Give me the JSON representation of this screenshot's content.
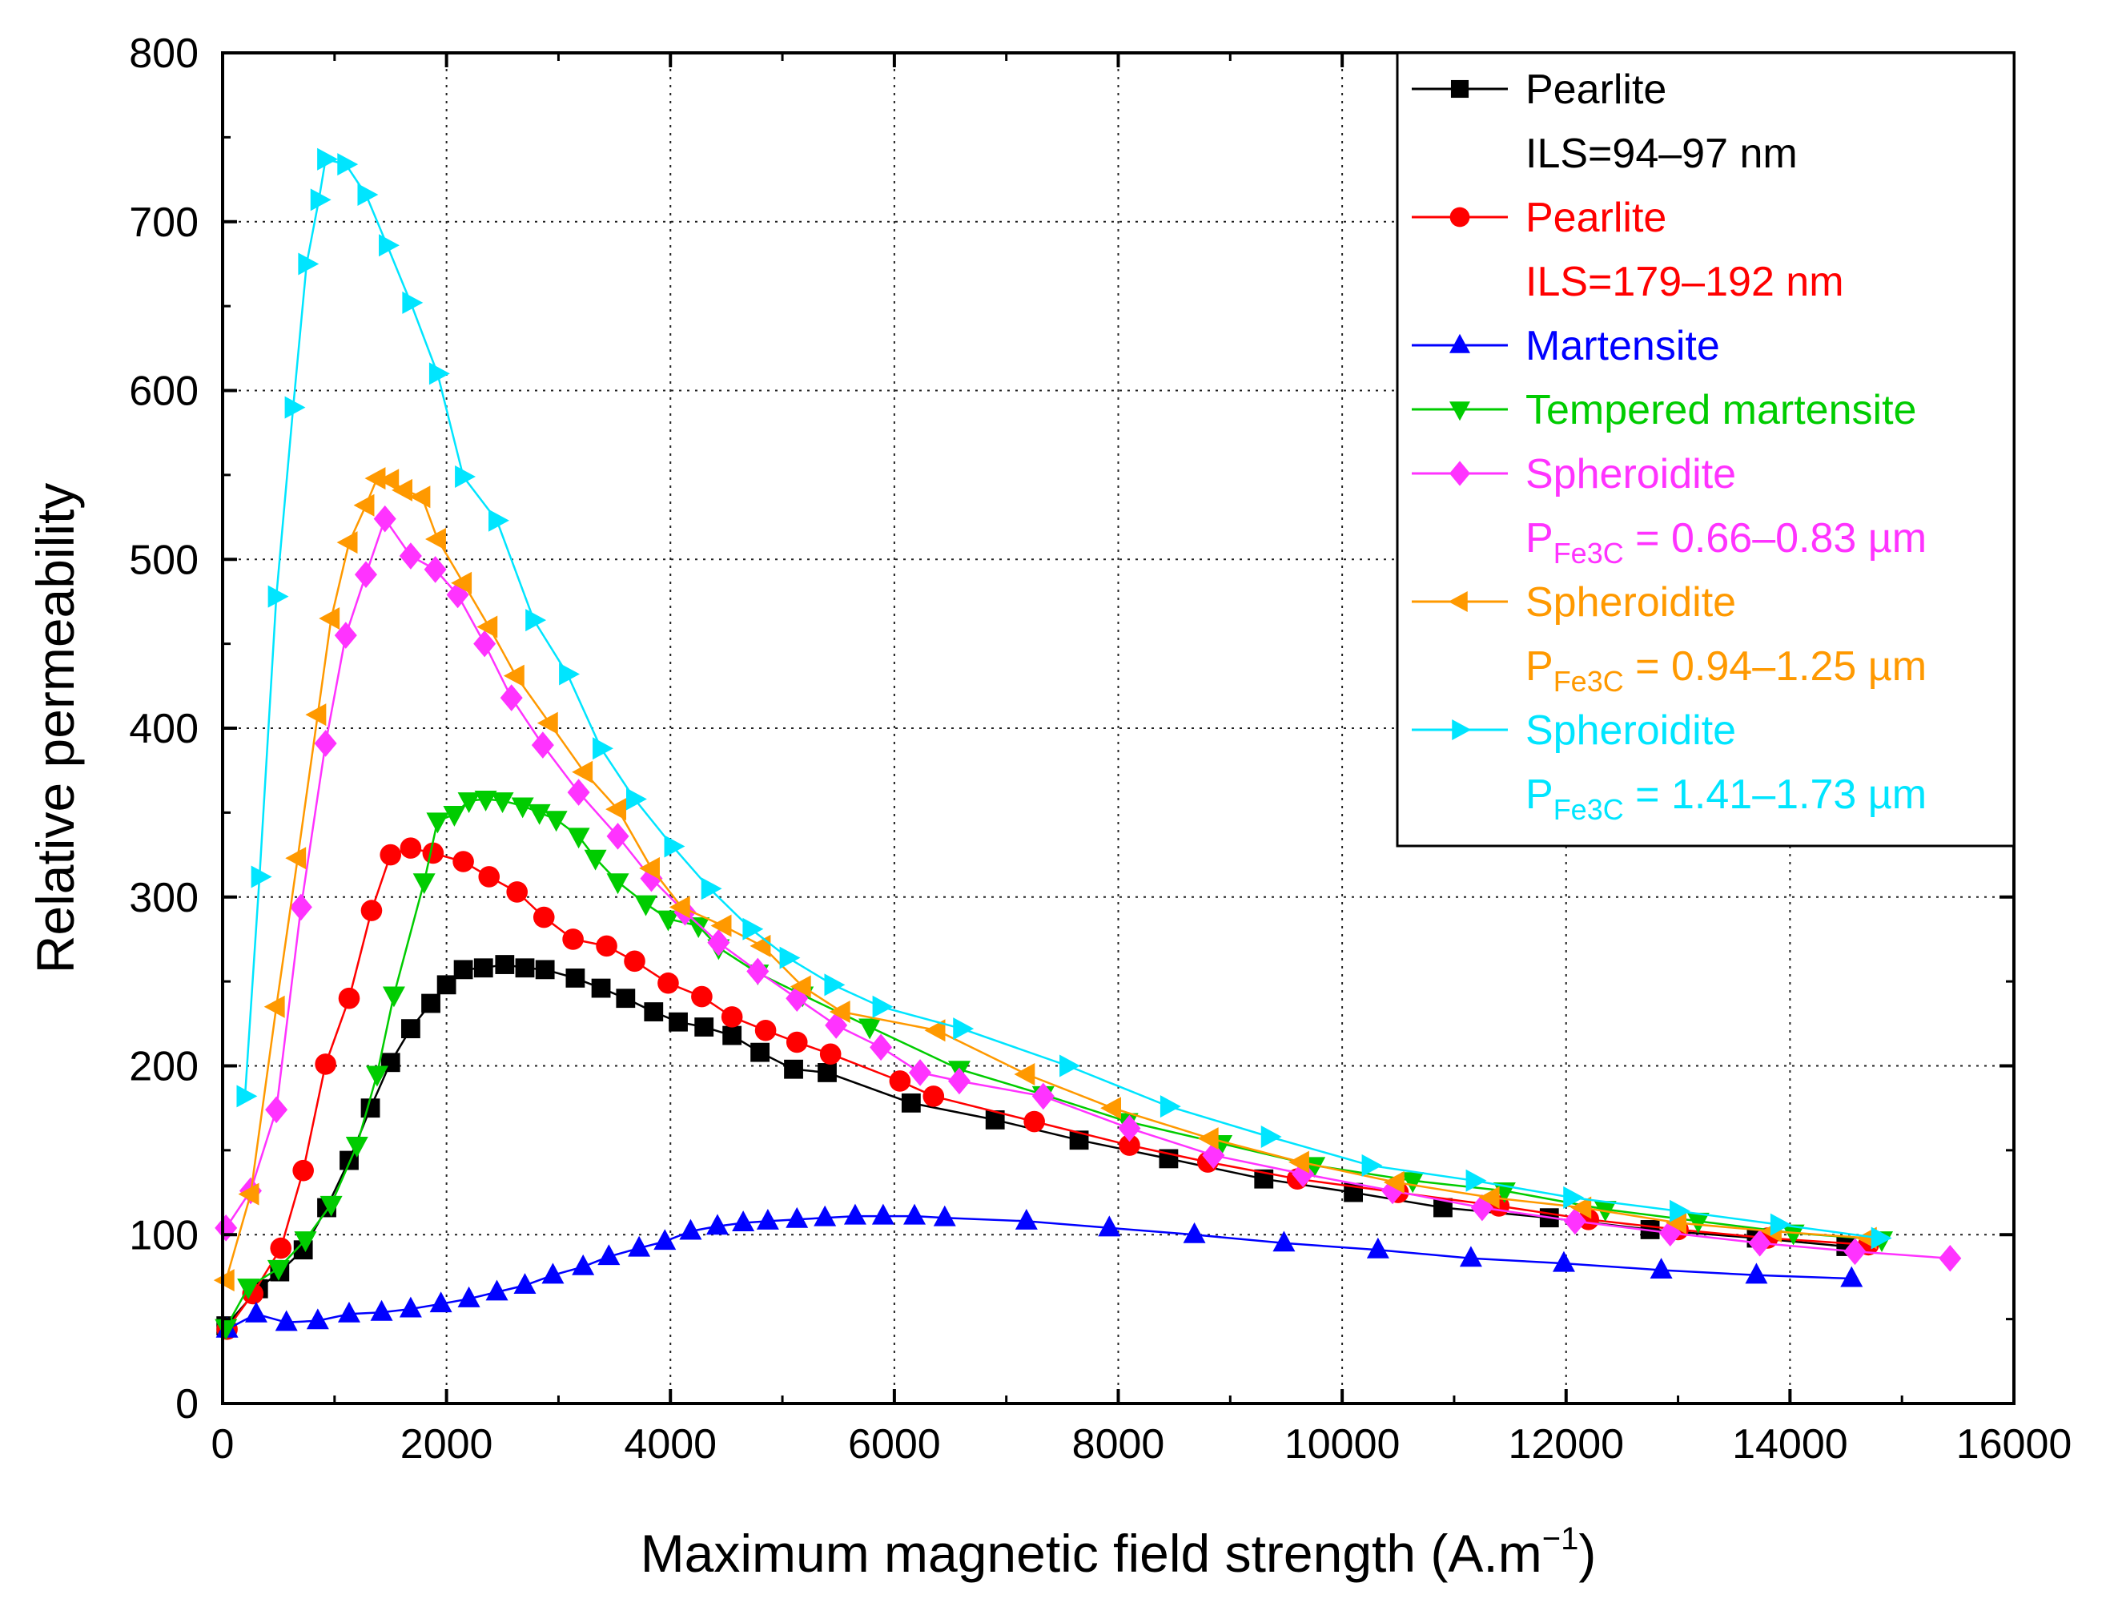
{
  "chart_data": {
    "type": "line",
    "title": "",
    "xlabel": "Maximum magnetic field strength (A.m",
    "xlabel_sup": "−1",
    "xlabel_end": ")",
    "ylabel": "Relative permeability",
    "xlim": [
      0,
      16000
    ],
    "ylim": [
      0,
      800
    ],
    "xticks": [
      0,
      2000,
      4000,
      6000,
      8000,
      10000,
      12000,
      14000,
      16000
    ],
    "yticks": [
      0,
      100,
      200,
      300,
      400,
      500,
      600,
      700,
      800
    ],
    "xtick_labels": [
      "0",
      "2000",
      "4000",
      "6000",
      "8000",
      "10000",
      "12000",
      "14000",
      "16000"
    ],
    "ytick_labels": [
      "0",
      "100",
      "200",
      "300",
      "400",
      "500",
      "600",
      "700",
      "800"
    ],
    "grid": true,
    "legend_position": "top-right",
    "series": [
      {
        "name": "Pearlite",
        "legend_line2": "ILS=94–97 nm",
        "legend_line2_sub": "",
        "legend_line2_end": "",
        "color": "#000000",
        "marker": "square",
        "x": [
          30,
          320,
          510,
          720,
          930,
          1130,
          1320,
          1500,
          1680,
          1860,
          2000,
          2150,
          2330,
          2520,
          2700,
          2880,
          3150,
          3380,
          3600,
          3850,
          4070,
          4300,
          4550,
          4800,
          5100,
          5400,
          6150,
          6900,
          7650,
          8450,
          9300,
          10100,
          10900,
          11850,
          12750,
          13700,
          14500
        ],
        "y": [
          46,
          68,
          78,
          91,
          116,
          144,
          175,
          202,
          222,
          237,
          248,
          257,
          258,
          260,
          258,
          257,
          252,
          246,
          240,
          232,
          226,
          223,
          218,
          208,
          198,
          196,
          178,
          168,
          156,
          145,
          133,
          125,
          116,
          110,
          103,
          98,
          93
        ]
      },
      {
        "name": "Pearlite",
        "legend_line2": "ILS=179–192 nm",
        "legend_line2_sub": "",
        "legend_line2_end": "",
        "color": "#ff0000",
        "marker": "circle",
        "x": [
          40,
          270,
          520,
          720,
          920,
          1130,
          1330,
          1500,
          1680,
          1880,
          2150,
          2380,
          2630,
          2870,
          3130,
          3430,
          3680,
          3980,
          4280,
          4550,
          4850,
          5130,
          5430,
          6050,
          6350,
          7250,
          8100,
          8800,
          9600,
          10500,
          11400,
          12200,
          13000,
          13800,
          14700
        ],
        "y": [
          44,
          65,
          92,
          138,
          201,
          240,
          292,
          325,
          329,
          326,
          321,
          312,
          303,
          288,
          275,
          271,
          262,
          249,
          241,
          229,
          221,
          214,
          207,
          191,
          182,
          167,
          153,
          143,
          133,
          125,
          117,
          109,
          103,
          98,
          94
        ]
      },
      {
        "name": "Martensite",
        "legend_line2": "",
        "legend_line2_sub": "",
        "legend_line2_end": "",
        "color": "#0000ff",
        "marker": "triangle-up",
        "x": [
          40,
          300,
          570,
          850,
          1130,
          1420,
          1680,
          1950,
          2200,
          2450,
          2700,
          2950,
          3220,
          3450,
          3720,
          3950,
          4180,
          4420,
          4650,
          4870,
          5130,
          5380,
          5650,
          5900,
          6180,
          6450,
          7180,
          7920,
          8680,
          9480,
          10320,
          11150,
          11980,
          12850,
          13700,
          14550
        ],
        "y": [
          44,
          53,
          48,
          49,
          53,
          54,
          56,
          59,
          62,
          66,
          70,
          76,
          81,
          87,
          92,
          96,
          102,
          105,
          107,
          108,
          109,
          110,
          111,
          111,
          111,
          110,
          108,
          104,
          100,
          95,
          91,
          86,
          83,
          79,
          76,
          74
        ]
      },
      {
        "name": "Tempered martensite",
        "legend_line2": "",
        "legend_line2_sub": "",
        "legend_line2_end": "",
        "color": "#00cc00",
        "marker": "triangle-down",
        "x": [
          30,
          230,
          500,
          740,
          970,
          1200,
          1380,
          1530,
          1800,
          1920,
          2070,
          2200,
          2350,
          2500,
          2680,
          2830,
          2980,
          3180,
          3330,
          3530,
          3780,
          3980,
          4250,
          4430,
          4780,
          5180,
          5780,
          6580,
          7330,
          8080,
          8920,
          9750,
          10630,
          11450,
          12350,
          13180,
          14030,
          14820
        ],
        "y": [
          45,
          69,
          80,
          97,
          118,
          153,
          195,
          242,
          309,
          345,
          349,
          357,
          358,
          357,
          354,
          350,
          346,
          336,
          323,
          309,
          296,
          287,
          283,
          270,
          255,
          242,
          223,
          198,
          183,
          167,
          154,
          141,
          132,
          126,
          115,
          108,
          101,
          97
        ]
      },
      {
        "name": "Spheroidite",
        "legend_line2": "P",
        "legend_line2_sub": "Fe3C",
        "legend_line2_end": " = 0.66–0.83 µm",
        "color": "#ff33ff",
        "marker": "diamond",
        "x": [
          30,
          250,
          480,
          700,
          920,
          1100,
          1280,
          1450,
          1680,
          1900,
          2100,
          2340,
          2580,
          2860,
          3180,
          3530,
          3830,
          4130,
          4430,
          4780,
          5130,
          5480,
          5880,
          6230,
          6580,
          7330,
          8100,
          8850,
          9650,
          10450,
          11250,
          12080,
          12930,
          13730,
          14580,
          15430
        ],
        "y": [
          104,
          126,
          174,
          294,
          391,
          455,
          491,
          524,
          502,
          494,
          479,
          450,
          418,
          390,
          362,
          336,
          311,
          291,
          273,
          256,
          240,
          224,
          211,
          196,
          191,
          182,
          163,
          147,
          136,
          126,
          116,
          108,
          101,
          95,
          90,
          86
        ]
      },
      {
        "name": "Spheroidite",
        "legend_line2": "P",
        "legend_line2_sub": "Fe3C",
        "legend_line2_end": " = 0.94–1.25 µm",
        "color": "#ff9900",
        "marker": "triangle-left",
        "x": [
          30,
          250,
          480,
          670,
          850,
          970,
          1130,
          1280,
          1380,
          1500,
          1620,
          1780,
          1920,
          2150,
          2380,
          2620,
          2920,
          3230,
          3530,
          3830,
          4100,
          4470,
          4820,
          5180,
          5530,
          6380,
          7180,
          7950,
          8820,
          9630,
          10480,
          11330,
          12150,
          13000,
          13850,
          14700
        ],
        "y": [
          73,
          124,
          235,
          323,
          408,
          465,
          510,
          532,
          548,
          547,
          541,
          537,
          512,
          486,
          460,
          431,
          403,
          374,
          352,
          317,
          294,
          283,
          271,
          247,
          232,
          221,
          195,
          175,
          157,
          143,
          131,
          122,
          116,
          107,
          102,
          98
        ]
      },
      {
        "name": "Spheroidite",
        "legend_line2": "P",
        "legend_line2_sub": "Fe3C",
        "legend_line2_end": " = 1.41–1.73 µm",
        "color": "#00e5ff",
        "marker": "triangle-right",
        "x": [
          200,
          330,
          480,
          630,
          750,
          860,
          920,
          1100,
          1280,
          1470,
          1680,
          1920,
          2150,
          2450,
          2780,
          3080,
          3380,
          3680,
          4020,
          4350,
          4720,
          5050,
          5450,
          5880,
          6600,
          7550,
          8450,
          9350,
          10250,
          11180,
          12050,
          13000,
          13900,
          14800
        ],
        "y": [
          182,
          312,
          478,
          590,
          675,
          713,
          737,
          734,
          716,
          686,
          652,
          610,
          549,
          523,
          464,
          432,
          388,
          358,
          330,
          305,
          281,
          264,
          248,
          235,
          222,
          200,
          176,
          158,
          141,
          132,
          122,
          114,
          106,
          98
        ]
      }
    ]
  }
}
